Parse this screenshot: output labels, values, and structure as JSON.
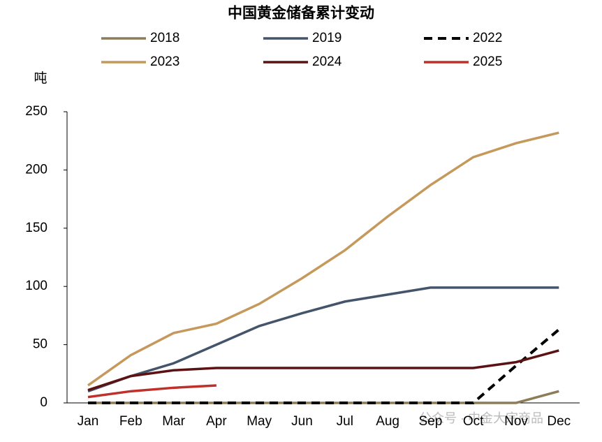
{
  "chart_data": {
    "type": "line",
    "title": "中国黄金储备累计变动",
    "y_label": "吨",
    "categories": [
      "Jan",
      "Feb",
      "Mar",
      "Apr",
      "May",
      "Jun",
      "Jul",
      "Aug",
      "Sep",
      "Oct",
      "Nov",
      "Dec"
    ],
    "series": [
      {
        "name": "2018",
        "color": "#8c7c58",
        "linestyle": "solid",
        "values": [
          0,
          0,
          0,
          0,
          0,
          0,
          0,
          0,
          0,
          0,
          0,
          10
        ]
      },
      {
        "name": "2019",
        "color": "#44546a",
        "linestyle": "solid",
        "values": [
          10,
          23,
          34,
          50,
          66,
          77,
          87,
          93,
          99,
          99,
          99,
          99
        ]
      },
      {
        "name": "2022",
        "color": "#000000",
        "linestyle": "dashed",
        "values": [
          0,
          0,
          0,
          0,
          0,
          0,
          0,
          0,
          0,
          0,
          32,
          63
        ]
      },
      {
        "name": "2023",
        "color": "#c4995b",
        "linestyle": "solid",
        "values": [
          15,
          41,
          60,
          68,
          85,
          107,
          131,
          160,
          187,
          211,
          223,
          232
        ]
      },
      {
        "name": "2024",
        "color": "#5c1212",
        "linestyle": "solid",
        "values": [
          11,
          23,
          28,
          30,
          30,
          30,
          30,
          30,
          30,
          30,
          35,
          45
        ]
      },
      {
        "name": "2025",
        "color": "#c0302a",
        "linestyle": "solid",
        "values": [
          5,
          10,
          13,
          15,
          null,
          null,
          null,
          null,
          null,
          null,
          null,
          null
        ]
      }
    ],
    "ylim": [
      0,
      250
    ],
    "yticks": [
      0,
      50,
      100,
      150,
      200,
      250
    ],
    "grid": false,
    "watermark": "公众号 · 中金大宗商品"
  }
}
